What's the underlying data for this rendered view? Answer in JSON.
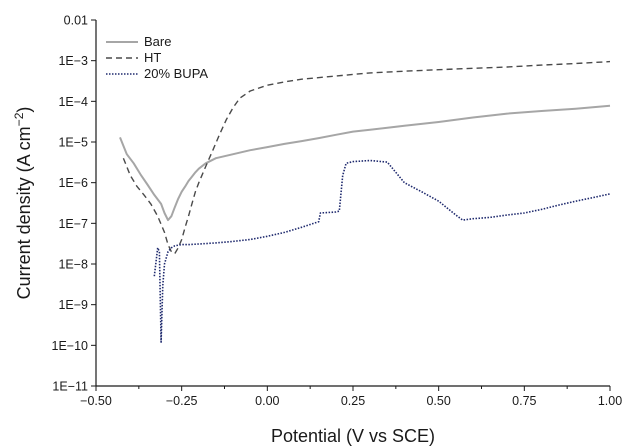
{
  "chart_data": {
    "type": "line",
    "title": "",
    "xlabel": "Potential (V vs SCE)",
    "ylabel_main": "Current density (A cm",
    "ylabel_sup": "−2",
    "ylabel_close": ")",
    "xlim": [
      -0.5,
      1.0
    ],
    "ylim": [
      1e-11,
      0.01
    ],
    "yscale": "log",
    "grid": false,
    "legend_position": "top-left",
    "x_ticks": [
      -0.5,
      -0.25,
      0.0,
      0.25,
      0.5,
      0.75,
      1.0
    ],
    "x_tick_labels": [
      "−0.50",
      "−0.25",
      "0.00",
      "0.25",
      "0.50",
      "0.75",
      "1.00"
    ],
    "y_ticks": [
      1e-11,
      1e-10,
      1e-09,
      1e-08,
      1e-07,
      1e-06,
      1e-05,
      0.0001,
      0.001,
      0.01
    ],
    "y_tick_labels": [
      "1E−11",
      "1E−10",
      "1E−9",
      "1E−8",
      "1E−7",
      "1E−6",
      "1E−5",
      "1E−4",
      "1E−3",
      "0.01"
    ],
    "series": [
      {
        "name": "Bare",
        "color": "#a6a6a6",
        "dash": "solid",
        "x": [
          -0.43,
          -0.41,
          -0.39,
          -0.37,
          -0.35,
          -0.33,
          -0.31,
          -0.3,
          -0.29,
          -0.28,
          -0.27,
          -0.26,
          -0.25,
          -0.24,
          -0.23,
          -0.22,
          -0.21,
          -0.2,
          -0.18,
          -0.15,
          -0.1,
          -0.05,
          0.0,
          0.05,
          0.1,
          0.15,
          0.2,
          0.25,
          0.3,
          0.4,
          0.5,
          0.6,
          0.7,
          0.8,
          0.9,
          1.0
        ],
        "y": [
          1.3e-05,
          5e-06,
          3e-06,
          1.6e-06,
          9e-07,
          5e-07,
          3e-07,
          1.8e-07,
          1.2e-07,
          1.5e-07,
          2.5e-07,
          4e-07,
          6e-07,
          8e-07,
          1.1e-06,
          1.4e-06,
          1.8e-06,
          2.2e-06,
          3e-06,
          4e-06,
          5e-06,
          6.3e-06,
          7.5e-06,
          9e-06,
          1.05e-05,
          1.25e-05,
          1.5e-05,
          1.8e-05,
          2e-05,
          2.5e-05,
          3.1e-05,
          4e-05,
          5e-05,
          5.8e-05,
          6.6e-05,
          7.8e-05
        ]
      },
      {
        "name": "HT",
        "color": "#4a4a4a",
        "dash": "dashed",
        "x": [
          -0.42,
          -0.4,
          -0.38,
          -0.36,
          -0.34,
          -0.32,
          -0.3,
          -0.29,
          -0.28,
          -0.27,
          -0.26,
          -0.25,
          -0.24,
          -0.23,
          -0.22,
          -0.21,
          -0.2,
          -0.18,
          -0.16,
          -0.14,
          -0.12,
          -0.1,
          -0.08,
          -0.05,
          0.0,
          0.05,
          0.1,
          0.2,
          0.3,
          0.4,
          0.5,
          0.6,
          0.7,
          0.8,
          0.9,
          1.0
        ],
        "y": [
          4e-06,
          1.5e-06,
          8e-07,
          5e-07,
          3e-07,
          1.5e-07,
          6e-08,
          3e-08,
          2e-08,
          1.8e-08,
          2.5e-08,
          4e-08,
          8e-08,
          1.5e-07,
          3e-07,
          6e-07,
          1e-06,
          2.5e-06,
          6e-06,
          1.5e-05,
          3.5e-05,
          7e-05,
          0.00012,
          0.00018,
          0.00025,
          0.0003,
          0.00035,
          0.00042,
          0.0005,
          0.00055,
          0.0006,
          0.00065,
          0.0007,
          0.00078,
          0.00085,
          0.00095
        ]
      },
      {
        "name": "20% BUPA",
        "color": "#1f2a6e",
        "dash": "dotted",
        "x": [
          -0.33,
          -0.32,
          -0.315,
          -0.31,
          -0.305,
          -0.3,
          -0.29,
          -0.28,
          -0.27,
          -0.26,
          -0.25,
          -0.23,
          -0.2,
          -0.15,
          -0.1,
          -0.05,
          0.0,
          0.05,
          0.1,
          0.15,
          0.155,
          0.2,
          0.21,
          0.22,
          0.23,
          0.25,
          0.3,
          0.35,
          0.4,
          0.45,
          0.5,
          0.55,
          0.57,
          0.6,
          0.65,
          0.7,
          0.75,
          0.8,
          0.85,
          0.9,
          0.95,
          1.0
        ],
        "y": [
          5e-09,
          2.5e-08,
          2e-08,
          1.2e-10,
          3e-09,
          1e-08,
          2e-08,
          2.5e-08,
          2.8e-08,
          2.9e-08,
          3e-08,
          3e-08,
          3.1e-08,
          3.3e-08,
          3.6e-08,
          4e-08,
          4.8e-08,
          6e-08,
          8e-08,
          1.1e-07,
          1.8e-07,
          1.9e-07,
          2e-07,
          1.5e-06,
          3e-06,
          3.3e-06,
          3.5e-06,
          3.2e-06,
          1e-06,
          6e-07,
          3.5e-07,
          1.6e-07,
          1.2e-07,
          1.3e-07,
          1.4e-07,
          1.6e-07,
          1.8e-07,
          2.2e-07,
          2.8e-07,
          3.5e-07,
          4.3e-07,
          5.3e-07
        ]
      }
    ]
  }
}
